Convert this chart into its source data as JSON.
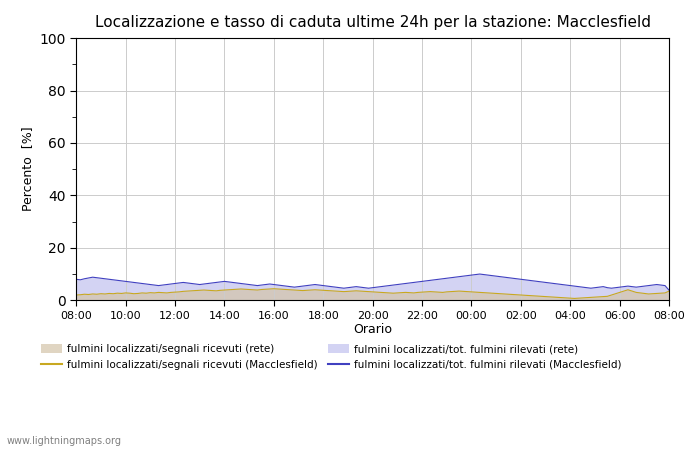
{
  "title": "Localizzazione e tasso di caduta ultime 24h per la stazione: Macclesfield",
  "xlabel": "Orario",
  "ylabel": "Percento  [%]",
  "ylim": [
    0,
    100
  ],
  "yticks": [
    0,
    20,
    40,
    60,
    80,
    100
  ],
  "yticks_minor": [
    10,
    30,
    50,
    70,
    90
  ],
  "x_labels": [
    "08:00",
    "10:00",
    "12:00",
    "14:00",
    "16:00",
    "18:00",
    "20:00",
    "22:00",
    "00:00",
    "02:00",
    "04:00",
    "06:00",
    "08:00"
  ],
  "background_color": "#ffffff",
  "plot_bg_color": "#ffffff",
  "grid_color": "#cccccc",
  "fill_rete_color": "#d4c4a8",
  "fill_rete_alpha": 0.7,
  "fill_macclesfield_color": "#c8c8f0",
  "fill_macclesfield_alpha": 0.8,
  "line_rete_color": "#c8a820",
  "line_macclesfield_color": "#4040c0",
  "watermark": "www.lightningmaps.org",
  "n_points": 145,
  "rete_fill_data": [
    2.0,
    2.1,
    2.3,
    2.2,
    2.4,
    2.3,
    2.5,
    2.4,
    2.6,
    2.5,
    2.7,
    2.6,
    2.8,
    2.7,
    2.5,
    2.6,
    2.8,
    2.7,
    2.9,
    2.8,
    3.0,
    2.9,
    2.8,
    3.0,
    3.1,
    3.2,
    3.4,
    3.5,
    3.6,
    3.7,
    3.8,
    3.9,
    3.8,
    3.7,
    3.6,
    3.8,
    3.9,
    4.0,
    4.1,
    4.2,
    4.3,
    4.2,
    4.1,
    4.0,
    3.9,
    4.1,
    4.2,
    4.3,
    4.4,
    4.3,
    4.2,
    4.1,
    4.0,
    3.9,
    3.8,
    3.7,
    3.8,
    3.9,
    4.0,
    3.9,
    3.8,
    3.7,
    3.6,
    3.5,
    3.4,
    3.3,
    3.4,
    3.5,
    3.6,
    3.5,
    3.4,
    3.3,
    3.2,
    3.1,
    3.0,
    2.9,
    2.8,
    2.7,
    2.8,
    2.9,
    3.0,
    2.9,
    2.8,
    3.0,
    3.1,
    3.2,
    3.3,
    3.2,
    3.1,
    3.0,
    3.2,
    3.3,
    3.4,
    3.5,
    3.4,
    3.3,
    3.2,
    3.1,
    3.0,
    2.9,
    2.8,
    2.7,
    2.6,
    2.5,
    2.4,
    2.3,
    2.2,
    2.1,
    2.0,
    1.9,
    1.8,
    1.7,
    1.6,
    1.5,
    1.4,
    1.3,
    1.2,
    1.1,
    1.0,
    0.9,
    0.8,
    0.7,
    0.8,
    0.9,
    1.0,
    1.1,
    1.2,
    1.3,
    1.4,
    1.5,
    2.0,
    2.5,
    3.0,
    3.5,
    4.0,
    3.5,
    3.0,
    2.8,
    2.6,
    2.4,
    2.5,
    2.6,
    2.7,
    2.8,
    3.5
  ],
  "macclesfield_fill_data": [
    8.0,
    7.8,
    8.2,
    8.5,
    8.8,
    8.6,
    8.4,
    8.2,
    8.0,
    7.8,
    7.6,
    7.4,
    7.2,
    7.0,
    6.8,
    6.6,
    6.4,
    6.2,
    6.0,
    5.8,
    5.6,
    5.8,
    6.0,
    6.2,
    6.4,
    6.6,
    6.8,
    6.6,
    6.4,
    6.2,
    6.0,
    6.2,
    6.4,
    6.6,
    6.8,
    7.0,
    7.2,
    7.0,
    6.8,
    6.6,
    6.4,
    6.2,
    6.0,
    5.8,
    5.6,
    5.8,
    6.0,
    6.2,
    6.0,
    5.8,
    5.6,
    5.4,
    5.2,
    5.0,
    5.2,
    5.4,
    5.6,
    5.8,
    6.0,
    5.8,
    5.6,
    5.4,
    5.2,
    5.0,
    4.8,
    4.6,
    4.8,
    5.0,
    5.2,
    5.0,
    4.8,
    4.6,
    4.8,
    5.0,
    5.2,
    5.4,
    5.6,
    5.8,
    6.0,
    6.2,
    6.4,
    6.6,
    6.8,
    7.0,
    7.2,
    7.4,
    7.6,
    7.8,
    8.0,
    8.2,
    8.4,
    8.6,
    8.8,
    9.0,
    9.2,
    9.4,
    9.6,
    9.8,
    10.0,
    9.8,
    9.6,
    9.4,
    9.2,
    9.0,
    8.8,
    8.6,
    8.4,
    8.2,
    8.0,
    7.8,
    7.6,
    7.4,
    7.2,
    7.0,
    6.8,
    6.6,
    6.4,
    6.2,
    6.0,
    5.8,
    5.6,
    5.4,
    5.2,
    5.0,
    4.8,
    4.6,
    4.8,
    5.0,
    5.2,
    4.8,
    4.6,
    4.8,
    5.0,
    5.2,
    5.4,
    5.2,
    5.0,
    5.2,
    5.4,
    5.6,
    5.8,
    6.0,
    5.8,
    5.6,
    3.8
  ]
}
